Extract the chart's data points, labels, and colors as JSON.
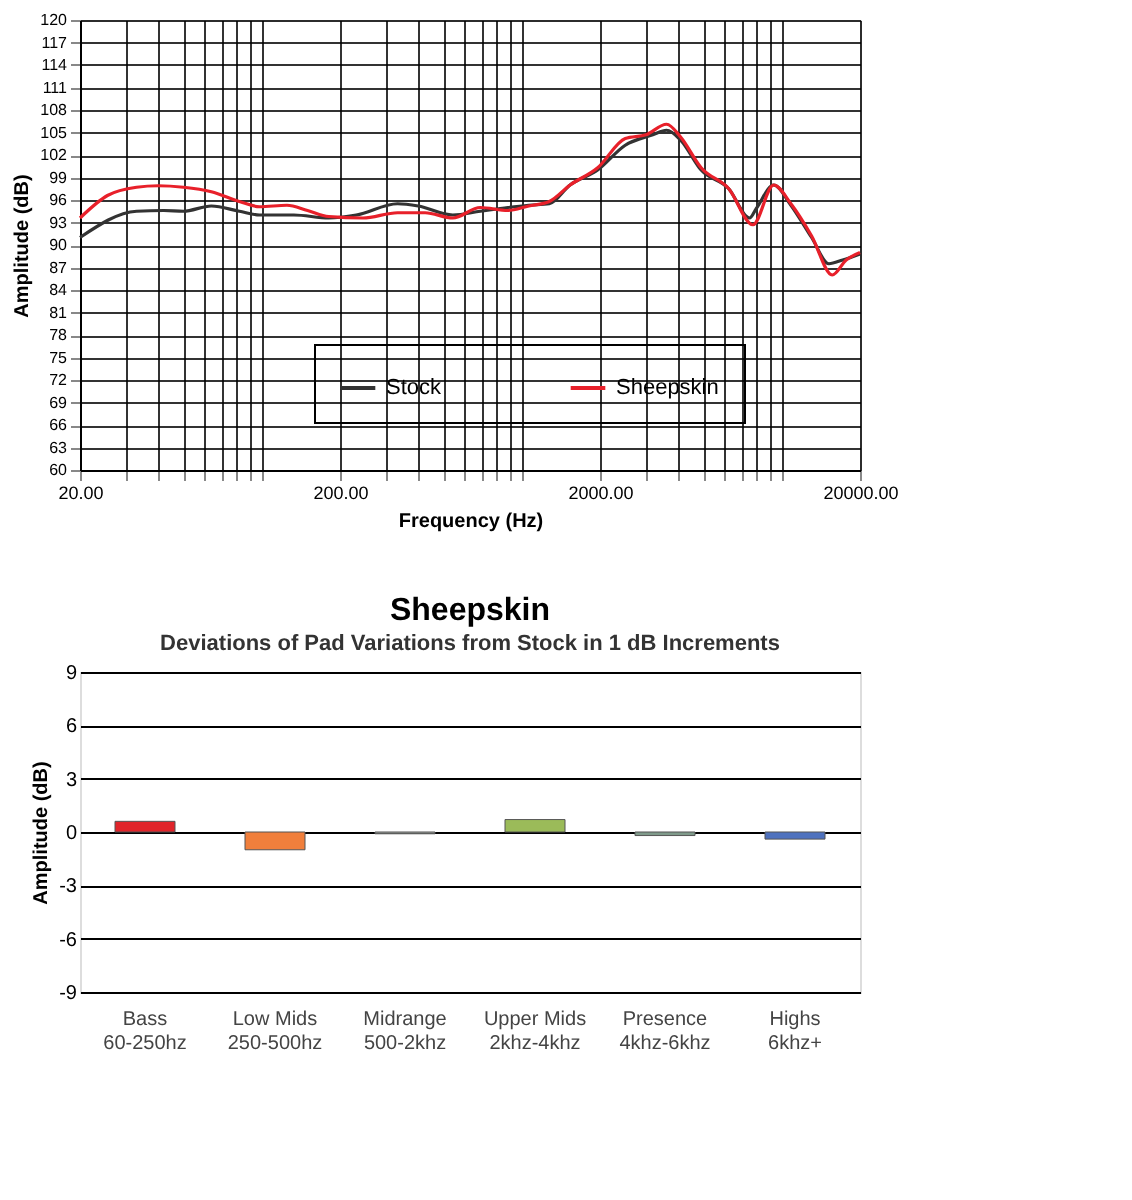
{
  "chart_data": [
    {
      "type": "line",
      "xlabel": "Frequency (Hz)",
      "ylabel": "Amplitude (dB)",
      "log": "x",
      "grid": true,
      "legend": "bottom",
      "line_style": "solid",
      "xlim": [
        20,
        20000
      ],
      "ylim": [
        60,
        120
      ],
      "xticks": [
        {
          "value": 20,
          "label": "20.00"
        },
        {
          "value": 30,
          "label": null
        },
        {
          "value": 40,
          "label": null
        },
        {
          "value": 50,
          "label": null
        },
        {
          "value": 60,
          "label": null
        },
        {
          "value": 70,
          "label": null
        },
        {
          "value": 80,
          "label": null
        },
        {
          "value": 90,
          "label": null
        },
        {
          "value": 100,
          "label": null
        },
        {
          "value": 200,
          "label": "200.00"
        },
        {
          "value": 300,
          "label": null
        },
        {
          "value": 400,
          "label": null
        },
        {
          "value": 500,
          "label": null
        },
        {
          "value": 600,
          "label": null
        },
        {
          "value": 700,
          "label": null
        },
        {
          "value": 800,
          "label": null
        },
        {
          "value": 900,
          "label": null
        },
        {
          "value": 1000,
          "label": null
        },
        {
          "value": 2000,
          "label": "2000.00"
        },
        {
          "value": 3000,
          "label": null
        },
        {
          "value": 4000,
          "label": null
        },
        {
          "value": 5000,
          "label": null
        },
        {
          "value": 6000,
          "label": null
        },
        {
          "value": 7000,
          "label": null
        },
        {
          "value": 8000,
          "label": null
        },
        {
          "value": 9000,
          "label": null
        },
        {
          "value": 10000,
          "label": null
        },
        {
          "value": 20000,
          "label": "20000.00"
        }
      ],
      "yticks": [
        60,
        63,
        66,
        69,
        72,
        75,
        78,
        81,
        84,
        87,
        90,
        93,
        96,
        99,
        102,
        105,
        108,
        111,
        114,
        117,
        120
      ],
      "series": [
        {
          "name": "Stock",
          "color": "#333333",
          "x": [
            20,
            33,
            42,
            50,
            64,
            82,
            98,
            133,
            181,
            231,
            333,
            400,
            543,
            693,
            885,
            1064,
            1277,
            1534,
            1959,
            2501,
            3194,
            3607,
            4083,
            4898,
            6256,
            7517,
            7995,
            9312,
            10845,
            13031,
            15179,
            17153,
            20000
          ],
          "values": [
            91,
            94.5,
            94.6,
            94.5,
            95.2,
            94.5,
            94,
            94,
            93.6,
            94,
            95.5,
            95.2,
            94,
            94.5,
            95,
            95.3,
            95.5,
            98,
            100,
            103.3,
            104.7,
            105.3,
            104,
            100,
            97.5,
            93.6,
            94.9,
            98,
            95.3,
            91,
            87.5,
            88,
            88.8
          ]
        },
        {
          "name": "Sheepskin",
          "color": "#e8202a",
          "x": [
            20,
            25.5,
            33,
            40,
            50,
            64,
            82,
            98,
            125,
            150,
            181,
            245,
            333,
            425,
            543,
            693,
            885,
            1064,
            1277,
            1534,
            1959,
            2501,
            3007,
            3607,
            4083,
            4898,
            6256,
            7748,
            9312,
            10845,
            13031,
            15634,
            17700,
            20000
          ],
          "values": [
            93.6,
            96.6,
            97.7,
            97.9,
            97.7,
            97.1,
            95.8,
            95.1,
            95.3,
            94.6,
            93.8,
            93.6,
            94.3,
            94.3,
            93.6,
            95,
            94.6,
            95.2,
            95.8,
            98,
            100.3,
            104.2,
            104.7,
            106.1,
            104.4,
            100.3,
            97.5,
            92.7,
            98,
            95.5,
            91.2,
            86,
            88,
            89
          ]
        }
      ]
    },
    {
      "type": "bar",
      "title": "Sheepskin",
      "subtitle": "Deviations of Pad Variations from Stock in 1 dB Increments",
      "ylabel": "Amplitude (dB)",
      "grid": "y",
      "legend": false,
      "categories": [
        "Bass\n60-250hz",
        "Low Mids\n250-500hz",
        "Midrange\n500-2khz",
        "Upper Mids\n2khz-4khz",
        "Presence\n4khz-6khz",
        "Highs\n6khz+"
      ],
      "values": [
        0.6,
        -1.0,
        -0.1,
        0.7,
        -0.2,
        -0.4
      ],
      "colors": [
        "#e0242a",
        "#f07f3c",
        "#9a9f9a",
        "#9bbb59",
        "#7f9a8a",
        "#4f72be"
      ],
      "ylim": [
        -9,
        9
      ],
      "yticks": [
        -9,
        -6,
        -3,
        0,
        3,
        6,
        9
      ]
    }
  ]
}
